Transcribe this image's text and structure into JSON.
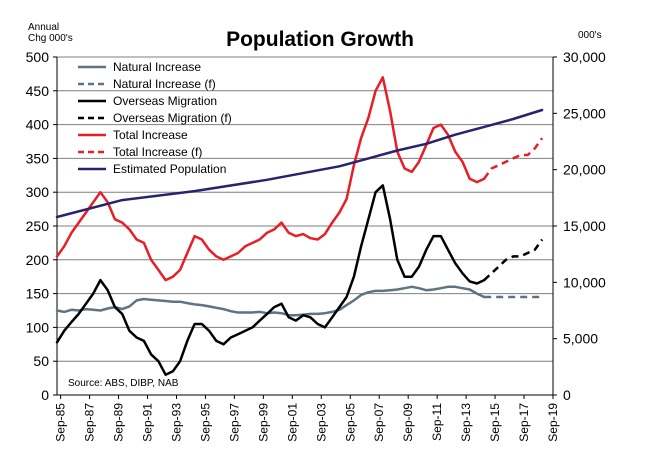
{
  "chart_data": {
    "type": "line",
    "title": "Population Growth",
    "y_left_label": "Annual\nChg 000's",
    "y_right_label": "000's",
    "y_left_ticks": [
      "0",
      "50",
      "100",
      "150",
      "200",
      "250",
      "300",
      "350",
      "400",
      "450",
      "500"
    ],
    "y_right_ticks": [
      "0",
      "5,000",
      "10,000",
      "15,000",
      "20,000",
      "25,000",
      "30,000"
    ],
    "x_ticks": [
      "Sep-85",
      "Sep-87",
      "Sep-89",
      "Sep-91",
      "Sep-93",
      "Sep-95",
      "Sep-97",
      "Sep-99",
      "Sep-01",
      "Sep-03",
      "Sep-05",
      "Sep-07",
      "Sep-09",
      "Sep-11",
      "Sep-13",
      "Sep-15",
      "Sep-17",
      "Sep-19"
    ],
    "ylim_left": [
      0,
      500
    ],
    "ylim_right": [
      0,
      30000
    ],
    "xlim": [
      1985.5,
      2019.75
    ],
    "grid": true,
    "source": "Source: ABS, DIBP, NAB",
    "colors": {
      "natural": "#5f7380",
      "overseas": "#000000",
      "total": "#e81e25",
      "population": "#26246e"
    },
    "series": [
      {
        "name": "Natural Increase",
        "axis": "left",
        "style": "solid",
        "color": "#5f7380",
        "x": [
          1985.5,
          1986,
          1986.5,
          1987,
          1987.5,
          1988,
          1988.5,
          1989,
          1989.5,
          1990,
          1990.5,
          1991,
          1991.5,
          1992,
          1992.5,
          1993,
          1993.5,
          1994,
          1994.5,
          1995,
          1995.5,
          1996,
          1996.5,
          1997,
          1997.5,
          1998,
          1998.5,
          1999,
          1999.5,
          2000,
          2000.5,
          2001,
          2001.5,
          2002,
          2002.5,
          2003,
          2003.5,
          2004,
          2004.5,
          2005,
          2005.5,
          2006,
          2006.5,
          2007,
          2007.5,
          2008,
          2008.5,
          2009,
          2009.5,
          2010,
          2010.5,
          2011,
          2011.5,
          2012,
          2012.5,
          2013,
          2013.5,
          2014,
          2014.5,
          2015
        ],
        "values": [
          125,
          123,
          126,
          125,
          127,
          126,
          125,
          128,
          130,
          127,
          131,
          140,
          142,
          141,
          140,
          139,
          138,
          138,
          136,
          134,
          133,
          131,
          129,
          127,
          124,
          122,
          122,
          122,
          123,
          121,
          122,
          121,
          118,
          118,
          119,
          120,
          120,
          121,
          123,
          126,
          133,
          140,
          148,
          152,
          154,
          154,
          155,
          156,
          158,
          160,
          158,
          155,
          156,
          158,
          160,
          160,
          158,
          156,
          150,
          145
        ]
      },
      {
        "name": "Natural Increase (f)",
        "axis": "left",
        "style": "dashed",
        "color": "#5f7380",
        "x": [
          2015,
          2015.5,
          2016,
          2016.5,
          2017,
          2017.5,
          2018,
          2018.5,
          2019
        ],
        "values": [
          145,
          145,
          145,
          145,
          145,
          145,
          145,
          145,
          145
        ]
      },
      {
        "name": "Overseas Migration",
        "axis": "left",
        "style": "solid",
        "color": "#000000",
        "x": [
          1985.5,
          1986,
          1986.5,
          1987,
          1987.5,
          1988,
          1988.5,
          1989,
          1989.5,
          1990,
          1990.5,
          1991,
          1991.5,
          1992,
          1992.5,
          1993,
          1993.5,
          1994,
          1994.5,
          1995,
          1995.5,
          1996,
          1996.5,
          1997,
          1997.5,
          1998,
          1998.5,
          1999,
          1999.5,
          2000,
          2000.5,
          2001,
          2001.5,
          2002,
          2002.5,
          2003,
          2003.5,
          2004,
          2004.5,
          2005,
          2005.5,
          2006,
          2006.5,
          2007,
          2007.5,
          2008,
          2008.5,
          2009,
          2009.5,
          2010,
          2010.5,
          2011,
          2011.5,
          2012,
          2012.5,
          2013,
          2013.5,
          2014,
          2014.5,
          2015
        ],
        "values": [
          78,
          95,
          108,
          120,
          135,
          150,
          170,
          155,
          130,
          120,
          95,
          85,
          80,
          60,
          50,
          30,
          35,
          50,
          80,
          105,
          105,
          95,
          80,
          75,
          85,
          90,
          95,
          100,
          110,
          120,
          130,
          135,
          115,
          110,
          118,
          115,
          105,
          100,
          115,
          130,
          145,
          175,
          220,
          260,
          300,
          310,
          260,
          200,
          175,
          175,
          190,
          215,
          235,
          235,
          215,
          195,
          180,
          168,
          165,
          170
        ]
      },
      {
        "name": "Overseas Migration (f)",
        "axis": "left",
        "style": "dashed",
        "color": "#000000",
        "x": [
          2015,
          2015.5,
          2016,
          2016.5,
          2017,
          2017.5,
          2018,
          2018.5,
          2019
        ],
        "values": [
          170,
          180,
          190,
          200,
          205,
          205,
          210,
          215,
          230
        ]
      },
      {
        "name": "Total Increase",
        "axis": "left",
        "style": "solid",
        "color": "#e81e25",
        "x": [
          1985.5,
          1986,
          1986.5,
          1987,
          1987.5,
          1988,
          1988.5,
          1989,
          1989.5,
          1990,
          1990.5,
          1991,
          1991.5,
          1992,
          1992.5,
          1993,
          1993.5,
          1994,
          1994.5,
          1995,
          1995.5,
          1996,
          1996.5,
          1997,
          1997.5,
          1998,
          1998.5,
          1999,
          1999.5,
          2000,
          2000.5,
          2001,
          2001.5,
          2002,
          2002.5,
          2003,
          2003.5,
          2004,
          2004.5,
          2005,
          2005.5,
          2006,
          2006.5,
          2007,
          2007.5,
          2008,
          2008.5,
          2009,
          2009.5,
          2010,
          2010.5,
          2011,
          2011.5,
          2012,
          2012.5,
          2013,
          2013.5,
          2014,
          2014.5,
          2015
        ],
        "values": [
          205,
          220,
          240,
          255,
          270,
          285,
          300,
          285,
          260,
          255,
          245,
          230,
          225,
          200,
          185,
          170,
          175,
          185,
          210,
          235,
          230,
          215,
          205,
          200,
          205,
          210,
          220,
          225,
          230,
          240,
          245,
          255,
          240,
          235,
          238,
          232,
          230,
          238,
          255,
          270,
          290,
          340,
          380,
          410,
          450,
          470,
          420,
          360,
          335,
          330,
          345,
          370,
          395,
          400,
          385,
          360,
          345,
          320,
          315,
          320
        ]
      },
      {
        "name": "Total Increase (f)",
        "axis": "left",
        "style": "dashed",
        "color": "#e81e25",
        "x": [
          2015,
          2015.5,
          2016,
          2016.5,
          2017,
          2017.5,
          2018,
          2018.5,
          2019
        ],
        "values": [
          320,
          335,
          340,
          345,
          350,
          355,
          355,
          365,
          380
        ]
      },
      {
        "name": "Estimated Population",
        "axis": "right",
        "style": "solid",
        "color": "#26246e",
        "x": [
          1985.5,
          1990,
          1995,
          2000,
          2005,
          2007,
          2009,
          2011,
          2013,
          2015,
          2017,
          2019
        ],
        "values": [
          15800,
          17300,
          18100,
          19100,
          20300,
          21000,
          21700,
          22300,
          23100,
          23800,
          24500,
          25300
        ]
      }
    ]
  }
}
